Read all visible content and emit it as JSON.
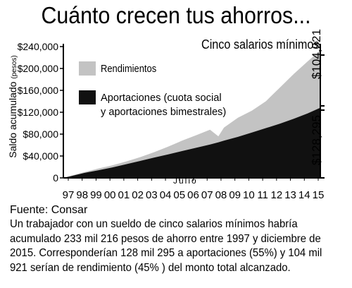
{
  "chart_data": {
    "type": "area",
    "title": "Cuánto crecen tus ahorros...",
    "subtitle": "Cinco salarios mínimos",
    "ylabel": "Saldo acumulado",
    "ylabel_unit": "(pesos)",
    "xlabel": "Julio",
    "ylim": [
      0,
      240000
    ],
    "y_ticks": [
      "$240,000",
      "$200,000",
      "$160,000",
      "$120,000",
      "$80,000",
      "$40,000",
      "0"
    ],
    "y_tick_values": [
      240000,
      200000,
      160000,
      120000,
      80000,
      40000,
      0
    ],
    "x_ticks": [
      "97",
      "98",
      "99",
      "00",
      "01",
      "02",
      "03",
      "04",
      "05",
      "06",
      "07",
      "08",
      "09",
      "10",
      "11",
      "12",
      "13",
      "14",
      "15"
    ],
    "x": [
      1997.5,
      1998,
      1999,
      2000,
      2001,
      2002,
      2003,
      2004,
      2005,
      2006,
      2007,
      2008,
      2008.6,
      2009,
      2010,
      2011,
      2012,
      2013,
      2014,
      2015,
      2015.9
    ],
    "series": [
      {
        "name": "Aportaciones (cuota social y aportaciones bimestrales)",
        "color": "#111111",
        "values": [
          0,
          3000,
          9000,
          14000,
          19000,
          25000,
          31000,
          37000,
          43000,
          49000,
          55000,
          61000,
          65000,
          68000,
          75000,
          83000,
          91000,
          99000,
          108000,
          118000,
          128295
        ]
      },
      {
        "name": "Rendimientos",
        "color": "#c3c3c3",
        "values": [
          0,
          3500,
          10500,
          17000,
          23000,
          30000,
          38000,
          47000,
          57000,
          68000,
          78000,
          88000,
          76000,
          92000,
          110000,
          123000,
          140000,
          165000,
          190000,
          213000,
          233216
        ]
      }
    ],
    "right_labels": [
      "$104,921",
      "$128,295"
    ],
    "source": "Fuente: Consar",
    "description": "Un trabajador con un sueldo de cinco salarios mínimos habría acumulado 233 mil 216 pesos de ahorro entre 1997 y diciembre de 2015. Corresponderían 128 mil 295 a aportaciones (55%) y 104 mil 921 serían de rendimiento (45% ) del monto total alcanzado."
  }
}
